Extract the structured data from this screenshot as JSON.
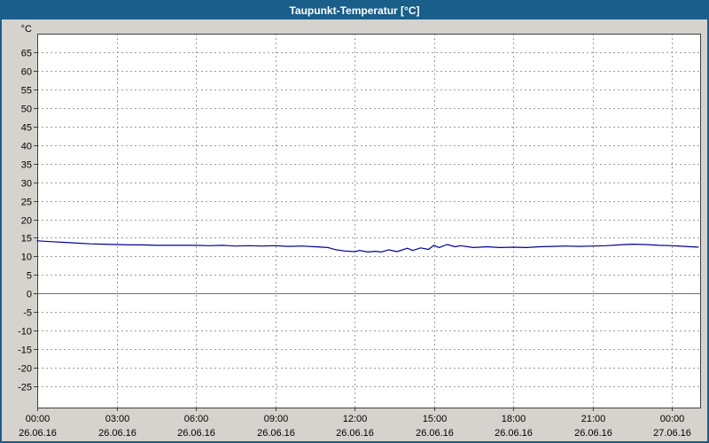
{
  "title": "Taupunkt-Temperatur [°C]",
  "colors": {
    "titlebar": "#1a5e8a",
    "titlebar_text": "#ffffff",
    "background": "#d6d3ce",
    "plot_bg": "#ffffff",
    "grid": "#9b9b9b",
    "zero_line": "#707070",
    "axis": "#404040",
    "line": "#000099",
    "text": "#000000"
  },
  "chart_data": {
    "type": "line",
    "title": "Taupunkt-Temperatur [°C]",
    "ylabel": "°C",
    "xlabel": "",
    "grid": true,
    "legend": false,
    "ylim": [
      -30.7,
      70
    ],
    "yticks": [
      65,
      60,
      55,
      50,
      45,
      40,
      35,
      30,
      25,
      20,
      15,
      10,
      5,
      0,
      -5,
      -10,
      -15,
      -20,
      -25
    ],
    "xlim_hours": [
      0,
      25.07
    ],
    "xticks": [
      {
        "hour": 0,
        "time": "00:00",
        "date": "26.06.16"
      },
      {
        "hour": 3,
        "time": "03:00",
        "date": "26.06.16"
      },
      {
        "hour": 6,
        "time": "06:00",
        "date": "26.06.16"
      },
      {
        "hour": 9,
        "time": "09:00",
        "date": "26.06.16"
      },
      {
        "hour": 12,
        "time": "12:00",
        "date": "26.06.16"
      },
      {
        "hour": 15,
        "time": "15:00",
        "date": "26.06.16"
      },
      {
        "hour": 18,
        "time": "18:00",
        "date": "26.06.16"
      },
      {
        "hour": 21,
        "time": "21:00",
        "date": "26.06.16"
      },
      {
        "hour": 24,
        "time": "00:00",
        "date": "27.06.16"
      }
    ],
    "series": [
      {
        "name": "Taupunkt-Temperatur",
        "color": "#000099",
        "x": [
          0,
          0.5,
          1,
          1.5,
          2,
          2.5,
          3,
          3.5,
          4,
          4.5,
          5,
          5.5,
          6,
          6.5,
          7,
          7.5,
          8,
          8.5,
          9,
          9.5,
          10,
          10.5,
          11,
          11.3,
          11.6,
          12,
          12.2,
          12.5,
          12.8,
          13,
          13.3,
          13.6,
          14,
          14.2,
          14.5,
          14.8,
          15,
          15.2,
          15.5,
          15.8,
          16,
          16.5,
          17,
          17.5,
          18,
          18.5,
          19,
          19.5,
          20,
          20.5,
          21,
          21.5,
          22,
          22.5,
          23,
          23.5,
          24,
          24.5,
          25
        ],
        "y": [
          14.2,
          14.0,
          13.8,
          13.6,
          13.4,
          13.3,
          13.2,
          13.1,
          13.1,
          13.0,
          13.0,
          13.0,
          13.0,
          12.9,
          13.0,
          12.8,
          12.9,
          12.8,
          12.9,
          12.7,
          12.8,
          12.6,
          12.4,
          11.8,
          11.5,
          11.3,
          11.6,
          11.2,
          11.4,
          11.2,
          11.8,
          11.3,
          12.2,
          11.6,
          12.3,
          11.9,
          13.0,
          12.4,
          13.2,
          12.6,
          12.9,
          12.4,
          12.6,
          12.4,
          12.5,
          12.4,
          12.6,
          12.7,
          12.8,
          12.7,
          12.8,
          12.9,
          13.1,
          13.3,
          13.2,
          13.0,
          12.9,
          12.7,
          12.5
        ]
      }
    ]
  }
}
